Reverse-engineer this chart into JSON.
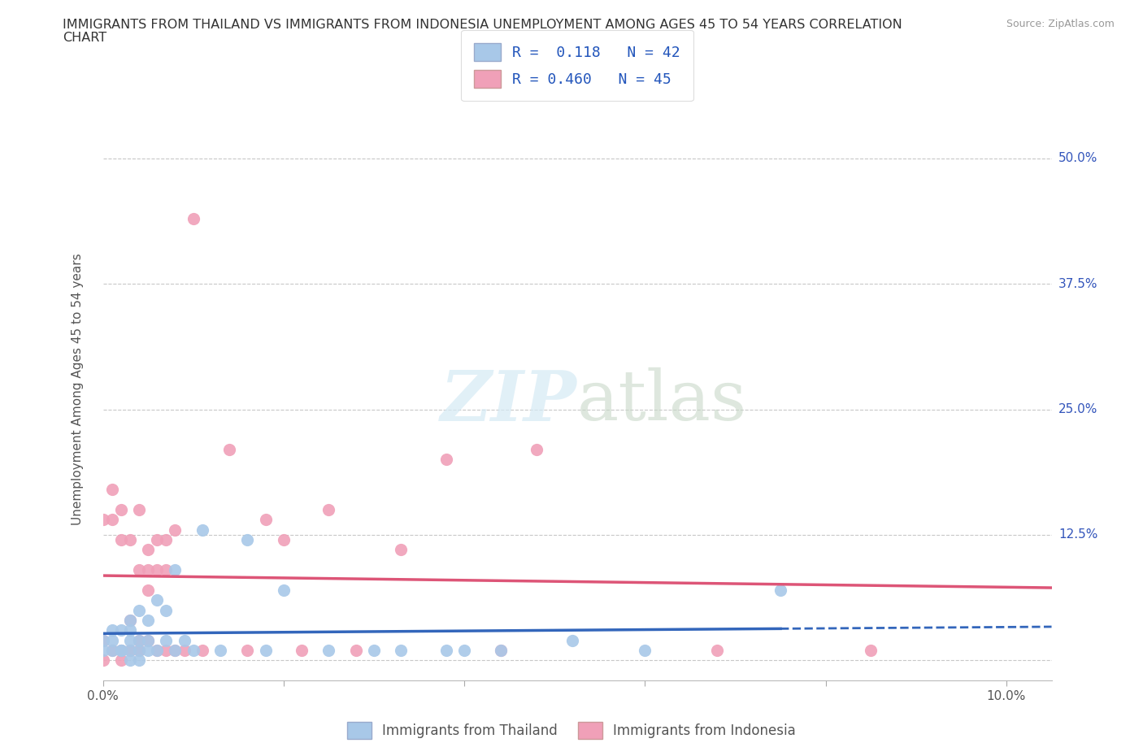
{
  "title_line1": "IMMIGRANTS FROM THAILAND VS IMMIGRANTS FROM INDONESIA UNEMPLOYMENT AMONG AGES 45 TO 54 YEARS CORRELATION",
  "title_line2": "CHART",
  "source_text": "Source: ZipAtlas.com",
  "ylabel": "Unemployment Among Ages 45 to 54 years",
  "xlim": [
    0.0,
    0.105
  ],
  "ylim": [
    -0.02,
    0.56
  ],
  "x_ticks": [
    0.0,
    0.02,
    0.04,
    0.06,
    0.08,
    0.1
  ],
  "y_ticks": [
    0.0,
    0.125,
    0.25,
    0.375,
    0.5
  ],
  "y_tick_labels": [
    "",
    "12.5%",
    "25.0%",
    "37.5%",
    "50.0%"
  ],
  "grid_color": "#c8c8c8",
  "background_color": "#ffffff",
  "R_thailand": 0.118,
  "N_thailand": 42,
  "R_indonesia": 0.46,
  "N_indonesia": 45,
  "thailand_color": "#a8c8e8",
  "indonesia_color": "#f0a0b8",
  "thailand_line_color": "#3366bb",
  "indonesia_line_color": "#dd5577",
  "thailand_line_solid_end": 0.075,
  "thailand_x": [
    0.0,
    0.0,
    0.001,
    0.001,
    0.001,
    0.002,
    0.002,
    0.002,
    0.003,
    0.003,
    0.003,
    0.003,
    0.003,
    0.004,
    0.004,
    0.004,
    0.004,
    0.005,
    0.005,
    0.005,
    0.006,
    0.006,
    0.007,
    0.007,
    0.008,
    0.008,
    0.009,
    0.01,
    0.011,
    0.013,
    0.016,
    0.018,
    0.02,
    0.025,
    0.03,
    0.033,
    0.038,
    0.04,
    0.044,
    0.052,
    0.06,
    0.075
  ],
  "thailand_y": [
    0.01,
    0.02,
    0.01,
    0.02,
    0.03,
    0.01,
    0.01,
    0.03,
    0.0,
    0.01,
    0.02,
    0.03,
    0.04,
    0.0,
    0.01,
    0.02,
    0.05,
    0.01,
    0.02,
    0.04,
    0.01,
    0.06,
    0.02,
    0.05,
    0.01,
    0.09,
    0.02,
    0.01,
    0.13,
    0.01,
    0.12,
    0.01,
    0.07,
    0.01,
    0.01,
    0.01,
    0.01,
    0.01,
    0.01,
    0.02,
    0.01,
    0.07
  ],
  "indonesia_x": [
    0.0,
    0.0,
    0.0,
    0.001,
    0.001,
    0.001,
    0.002,
    0.002,
    0.002,
    0.002,
    0.003,
    0.003,
    0.003,
    0.004,
    0.004,
    0.004,
    0.004,
    0.005,
    0.005,
    0.005,
    0.005,
    0.006,
    0.006,
    0.006,
    0.007,
    0.007,
    0.007,
    0.008,
    0.008,
    0.009,
    0.01,
    0.011,
    0.014,
    0.016,
    0.018,
    0.02,
    0.022,
    0.025,
    0.028,
    0.033,
    0.038,
    0.044,
    0.048,
    0.068,
    0.085
  ],
  "indonesia_y": [
    0.0,
    0.02,
    0.14,
    0.01,
    0.14,
    0.17,
    0.0,
    0.01,
    0.12,
    0.15,
    0.01,
    0.04,
    0.12,
    0.01,
    0.02,
    0.09,
    0.15,
    0.02,
    0.07,
    0.09,
    0.11,
    0.01,
    0.09,
    0.12,
    0.01,
    0.09,
    0.12,
    0.01,
    0.13,
    0.01,
    0.44,
    0.01,
    0.21,
    0.01,
    0.14,
    0.12,
    0.01,
    0.15,
    0.01,
    0.11,
    0.2,
    0.01,
    0.21,
    0.01,
    0.01
  ],
  "legend_R_label1": "R =  0.118   N = 42",
  "legend_R_label2": "R = 0.460   N = 45",
  "legend_bottom_label1": "Immigrants from Thailand",
  "legend_bottom_label2": "Immigrants from Indonesia"
}
